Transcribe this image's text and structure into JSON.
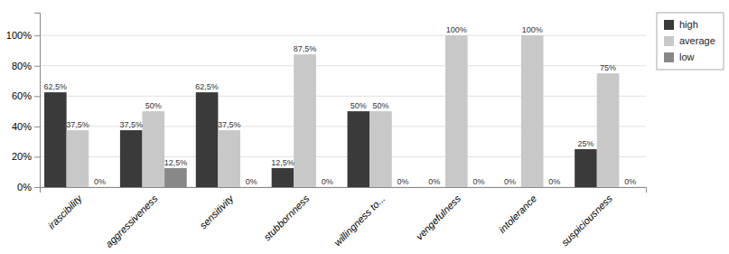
{
  "chart_data": {
    "type": "bar",
    "categories": [
      "irascibility",
      "aggressiveness",
      "sensitivity",
      "stubbornness",
      "willingness to...",
      "vengefulness",
      "intolerance",
      "suspiciousness"
    ],
    "series": [
      {
        "name": "high",
        "color": "#3a3a3a",
        "values": [
          62.5,
          37.5,
          62.5,
          12.5,
          50.0,
          0.0,
          0.0,
          25.0
        ],
        "value_labels": [
          "62,5%",
          "37,5%",
          "62,5%",
          "12,5%",
          "50%",
          "0%",
          "0%",
          "25%"
        ]
      },
      {
        "name": "average",
        "color": "#c8c8c8",
        "values": [
          37.5,
          50.0,
          37.5,
          87.5,
          50.0,
          100.0,
          100.0,
          75.0
        ],
        "value_labels": [
          "37,5%",
          "50%",
          "37,5%",
          "87,5%",
          "50%",
          "100%",
          "100%",
          "75%"
        ]
      },
      {
        "name": "low",
        "color": "#888888",
        "values": [
          0.0,
          12.5,
          0.0,
          0.0,
          0.0,
          0.0,
          0.0,
          0.0
        ],
        "value_labels": [
          "0%",
          "12,5%",
          "0%",
          "0%",
          "0%",
          "0%",
          "0%",
          "0%"
        ]
      }
    ],
    "ylim": [
      0,
      115
    ],
    "yticks": [
      {
        "value": 0,
        "label": "0%"
      },
      {
        "value": 20,
        "label": "20%"
      },
      {
        "value": 40,
        "label": "40%"
      },
      {
        "value": 60,
        "label": "60%"
      },
      {
        "value": 80,
        "label": "80%"
      },
      {
        "value": 100,
        "label": "100%"
      }
    ],
    "grid": true,
    "legend": "upper right",
    "data_labels": true
  }
}
